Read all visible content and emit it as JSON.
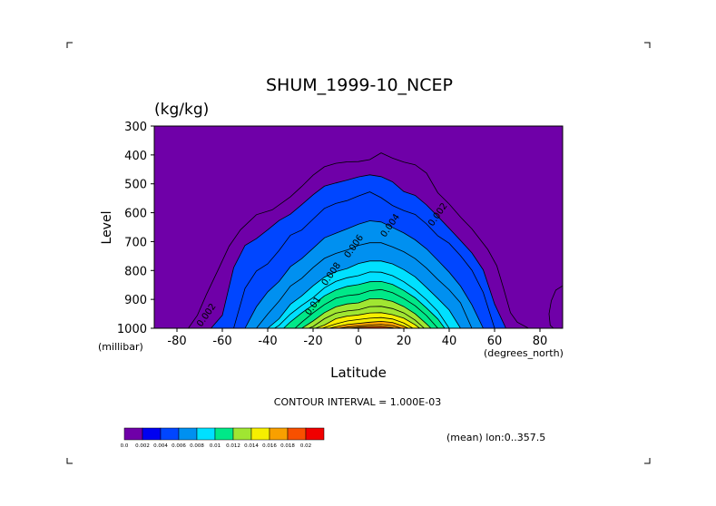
{
  "chart_data": {
    "type": "filled-contour",
    "title": "SHUM_1999-10_NCEP",
    "units": "(kg/kg)",
    "xlabel": "Latitude",
    "ylabel": "Level",
    "x_unit": "(degrees_north)",
    "y_unit": "(millibar)",
    "xlim": [
      -90,
      90
    ],
    "ylim": [
      1000,
      300
    ],
    "x_ticks": [
      -80,
      -60,
      -40,
      -20,
      0,
      20,
      40,
      60,
      80
    ],
    "y_ticks": [
      300,
      400,
      500,
      600,
      700,
      800,
      900,
      1000
    ],
    "contour_interval_text": "CONTOUR INTERVAL = 1.000E-03",
    "footer_text": "(mean) lon:0..357.5",
    "contour_labels": [
      {
        "text": "0.002",
        "lat": -66,
        "p": 960
      },
      {
        "text": "0.002",
        "lat": 36,
        "p": 612
      },
      {
        "text": "0.004",
        "lat": 15,
        "p": 650
      },
      {
        "text": "0.006",
        "lat": -1,
        "p": 722
      },
      {
        "text": "0.008",
        "lat": -11,
        "p": 818
      },
      {
        "text": "0.01",
        "lat": -19,
        "p": 928
      }
    ],
    "levels": [
      {
        "value": 0.001,
        "lat": [
          -75,
          -71,
          -67,
          -62,
          -57,
          -52,
          -45,
          -38,
          -30,
          -25,
          -20,
          -15,
          -10,
          -5,
          0,
          5,
          10,
          15,
          20,
          25,
          30,
          35,
          40,
          45,
          50,
          57,
          61,
          64,
          67,
          70,
          75
        ],
        "p": [
          1000,
          955,
          883,
          800,
          716,
          659,
          607,
          590,
          545,
          509,
          470,
          441,
          429,
          424,
          423,
          416,
          393,
          411,
          425,
          434,
          463,
          531,
          570,
          615,
          656,
          727,
          784,
          863,
          946,
          979,
          1000
        ]
      },
      {
        "value": 0.002,
        "lat": [
          -65,
          -60,
          -55,
          -50,
          -45,
          -40,
          -35,
          -30,
          -25,
          -20,
          -15,
          -10,
          -5,
          0,
          5,
          10,
          15,
          20,
          25,
          30,
          35,
          40,
          45,
          50,
          55,
          60,
          65
        ],
        "p": [
          1000,
          955,
          790,
          713,
          690,
          659,
          627,
          605,
          572,
          538,
          508,
          497,
          487,
          476,
          469,
          475,
          493,
          527,
          540,
          573,
          613,
          654,
          696,
          739,
          798,
          916,
          1000
        ]
      },
      {
        "value": 0.003,
        "lat": [
          -55,
          -50,
          -45,
          -40,
          -35,
          -30,
          -25,
          -20,
          -15,
          -10,
          -5,
          0,
          5,
          10,
          15,
          20,
          25,
          30,
          35,
          40,
          45,
          50,
          55,
          60
        ],
        "p": [
          1000,
          862,
          802,
          777,
          731,
          678,
          660,
          622,
          585,
          568,
          558,
          542,
          528,
          548,
          575,
          593,
          606,
          639,
          680,
          706,
          749,
          799,
          876,
          1000
        ]
      },
      {
        "value": 0.004,
        "lat": [
          -50,
          -45,
          -40,
          -35,
          -30,
          -25,
          -20,
          -15,
          -10,
          -5,
          0,
          5,
          10,
          15,
          20,
          25,
          30,
          35,
          40,
          45,
          50,
          55
        ],
        "p": [
          1000,
          926,
          874,
          838,
          787,
          759,
          723,
          687,
          671,
          656,
          640,
          628,
          632,
          651,
          670,
          694,
          725,
          765,
          806,
          854,
          919,
          1000
        ]
      },
      {
        "value": 0.005,
        "lat": [
          -45,
          -40,
          -35,
          -30,
          -25,
          -20,
          -15,
          -10,
          -5,
          0,
          5,
          10,
          15,
          20,
          25,
          30,
          35,
          40,
          45,
          50
        ],
        "p": [
          1000,
          951,
          906,
          854,
          827,
          790,
          758,
          741,
          729,
          713,
          704,
          704,
          718,
          735,
          759,
          792,
          831,
          867,
          912,
          1000
        ]
      },
      {
        "value": 0.006,
        "lat": [
          -40,
          -35,
          -30,
          -25,
          -20,
          -15,
          -10,
          -5,
          0,
          5,
          10,
          15,
          20,
          25,
          30,
          35,
          40,
          45
        ],
        "p": [
          1000,
          967,
          917,
          888,
          853,
          823,
          804,
          793,
          776,
          767,
          767,
          777,
          797,
          822,
          859,
          897,
          937,
          1000
        ]
      },
      {
        "value": 0.007,
        "lat": [
          -37,
          -35,
          -30,
          -25,
          -20,
          -15,
          -10,
          -5,
          0,
          5,
          10,
          15,
          20,
          25,
          30,
          35,
          40
        ],
        "p": [
          1000,
          990,
          951,
          921,
          894,
          860,
          838,
          825,
          818,
          805,
          806,
          818,
          839,
          867,
          901,
          941,
          1000
        ]
      },
      {
        "value": 0.008,
        "lat": [
          -33,
          -30,
          -25,
          -20,
          -15,
          -10,
          -5,
          0,
          5,
          10,
          15,
          20,
          25,
          30,
          35,
          38
        ],
        "p": [
          1000,
          978,
          947,
          919,
          888,
          868,
          855,
          849,
          839,
          838,
          848,
          869,
          895,
          930,
          968,
          1000
        ]
      },
      {
        "value": 0.009,
        "lat": [
          -28,
          -25,
          -20,
          -15,
          -10,
          -5,
          0,
          5,
          10,
          15,
          20,
          25,
          30,
          35
        ],
        "p": [
          1000,
          979,
          947,
          918,
          896,
          887,
          883,
          870,
          866,
          877,
          897,
          922,
          956,
          1000
        ]
      },
      {
        "value": 0.01,
        "lat": [
          -25,
          -20,
          -15,
          -10,
          -5,
          0,
          5,
          10,
          15,
          20,
          25,
          30,
          32
        ],
        "p": [
          1000,
          975,
          946,
          926,
          916,
          912,
          898,
          898,
          907,
          925,
          950,
          985,
          1000
        ]
      },
      {
        "value": 0.011,
        "lat": [
          -22,
          -20,
          -15,
          -10,
          -5,
          0,
          5,
          10,
          15,
          20,
          25,
          29
        ],
        "p": [
          1000,
          994,
          967,
          948,
          940,
          936,
          925,
          924,
          932,
          947,
          972,
          1000
        ]
      },
      {
        "value": 0.012,
        "lat": [
          -19,
          -15,
          -10,
          -5,
          0,
          5,
          10,
          15,
          20,
          25,
          27
        ],
        "p": [
          1000,
          989,
          967,
          958,
          954,
          947,
          946,
          953,
          965,
          988,
          1000
        ]
      },
      {
        "value": 0.013,
        "lat": [
          -16,
          -10,
          -5,
          0,
          5,
          10,
          15,
          20,
          24
        ],
        "p": [
          1000,
          985,
          975,
          970,
          965,
          963,
          968,
          982,
          1000
        ]
      },
      {
        "value": 0.014,
        "lat": [
          -13,
          -10,
          -5,
          0,
          5,
          10,
          15,
          20,
          22
        ],
        "p": [
          1000,
          995,
          987,
          983,
          979,
          976,
          980,
          993,
          1000
        ]
      },
      {
        "value": 0.015,
        "lat": [
          -9,
          -5,
          0,
          5,
          10,
          15,
          19
        ],
        "p": [
          1000,
          996,
          992,
          989,
          987,
          991,
          1000
        ]
      },
      {
        "value": 0.016,
        "lat": [
          -4,
          0,
          5,
          10,
          15,
          16
        ],
        "p": [
          1000,
          997,
          995,
          994,
          998,
          1000
        ]
      }
    ],
    "polar_contours": [
      {
        "value": 0.001,
        "lat": [
          90,
          87,
          85,
          84,
          84.5,
          86
        ],
        "p": [
          853,
          868,
          905,
          950,
          990,
          1000
        ]
      }
    ],
    "colorbar": {
      "labels": [
        "0.0",
        "0.002",
        "0.004",
        "0.006",
        "0.008",
        "0.01",
        "0.012",
        "0.014",
        "0.016",
        "0.018",
        "0.02"
      ],
      "colors": [
        "#6f00a8",
        "#0000f0",
        "#0046ff",
        "#0090f0",
        "#00e0ff",
        "#00e888",
        "#a0e632",
        "#f6ef00",
        "#f8a000",
        "#f85000",
        "#f00000"
      ]
    }
  }
}
